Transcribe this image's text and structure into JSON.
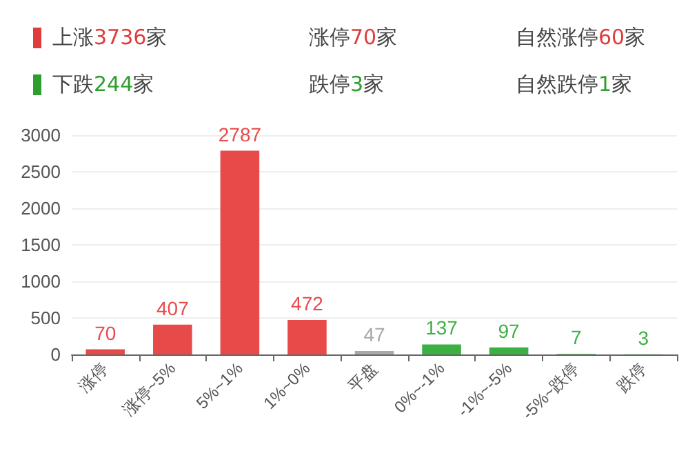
{
  "chart_data": {
    "type": "bar",
    "annotations": [
      "上涨3736家",
      "涨停70家",
      "自然涨停60家",
      "下跌244家",
      "跌停3家",
      "自然跌停1家"
    ],
    "categories": [
      "涨停",
      "涨停~5%",
      "5%~1%",
      "1%~0%",
      "平盘",
      "0%~-1%",
      "-1%~-5%",
      "-5%~跌停",
      "跌停"
    ],
    "values": [
      70,
      407,
      2787,
      472,
      47,
      137,
      97,
      7,
      3
    ],
    "colors": [
      "#e84a4a",
      "#e84a4a",
      "#e84a4a",
      "#e84a4a",
      "#a8a8a8",
      "#3cb043",
      "#3cb043",
      "#3cb043",
      "#3cb043"
    ],
    "ylim": [
      0,
      3000
    ],
    "yticks": [
      0,
      500,
      1000,
      1500,
      2000,
      2500,
      3000
    ],
    "grid": "y",
    "data_labels": true
  }
}
